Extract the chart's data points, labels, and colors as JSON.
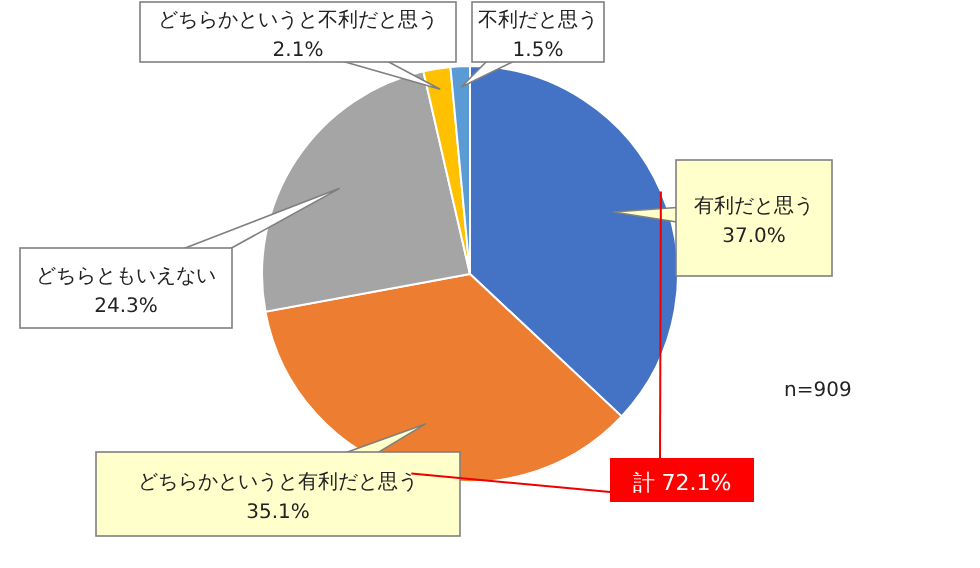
{
  "chart_data": {
    "type": "pie",
    "categories": [
      "有利だと思う",
      "どちらかというと有利だと思う",
      "どちらともいえない",
      "どちらかというと不利だと思う",
      "不利だと思う"
    ],
    "values": [
      37.0,
      35.1,
      24.3,
      2.1,
      1.5
    ],
    "value_labels": [
      "37.0%",
      "35.1%",
      "24.3%",
      "2.1%",
      "1.5%"
    ],
    "colors": [
      "#4472c4",
      "#ed7d31",
      "#a5a5a5",
      "#ffc000",
      "#5b9bd5"
    ],
    "annotations": [
      "計 72.1%",
      "n=909"
    ],
    "legend": false
  }
}
